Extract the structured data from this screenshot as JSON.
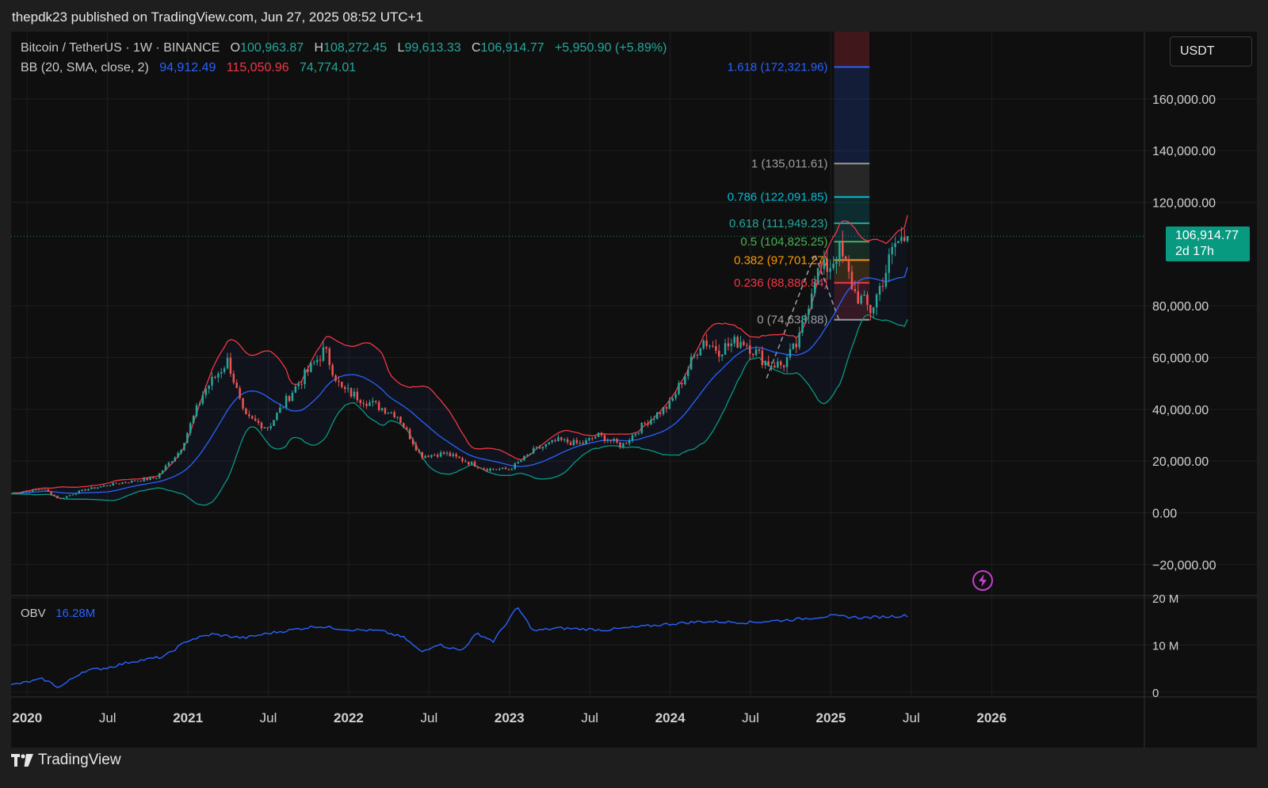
{
  "header": {
    "attribution": "thepdk23 published on TradingView.com, Jun 27, 2025 08:52 UTC+1"
  },
  "legend": {
    "symbol": "Bitcoin / TetherUS · 1W · BINANCE",
    "o_label": "O",
    "o_value": "100,963.87",
    "h_label": "H",
    "h_value": "108,272.45",
    "l_label": "L",
    "l_value": "99,613.33",
    "c_label": "C",
    "c_value": "106,914.77",
    "change": "+5,950.90 (+5.89%)",
    "bb_label": "BB (20, SMA, close, 2)",
    "bb_basis": "94,912.49",
    "bb_upper": "115,050.96",
    "bb_lower": "74,774.01"
  },
  "currency": "USDT",
  "price_tag": {
    "price": "106,914.77",
    "countdown": "2d 17h"
  },
  "obv": {
    "label": "OBV",
    "value": "16.28M"
  },
  "footer": {
    "brand": "TradingView"
  },
  "colors": {
    "up": "#26a69a",
    "down": "#ef5350",
    "basis": "#2962ff",
    "upper": "#f23645",
    "lower": "#089981",
    "obv": "#2962ff",
    "accent": "#089981"
  },
  "icons": [
    "tradingview-logo-icon",
    "lightning-icon"
  ],
  "chart_data": {
    "type": "line",
    "symbol": "Bitcoin / TetherUS",
    "interval": "1W",
    "price_axis": {
      "ticks": [
        {
          "value": 160000,
          "label": "160,000.00"
        },
        {
          "value": 140000,
          "label": "140,000.00"
        },
        {
          "value": 120000,
          "label": "120,000.00"
        },
        {
          "value": 80000,
          "label": "80,000.00"
        },
        {
          "value": 60000,
          "label": "60,000.00"
        },
        {
          "value": 40000,
          "label": "40,000.00"
        },
        {
          "value": 20000,
          "label": "20,000.00"
        },
        {
          "value": 0,
          "label": "0.00"
        },
        {
          "value": -20000,
          "label": "−20,000.00"
        }
      ],
      "ylim": [
        -32000,
        186000
      ]
    },
    "obv_axis": {
      "ticks": [
        {
          "value": 20,
          "label": "20 M"
        },
        {
          "value": 10,
          "label": "10 M"
        },
        {
          "value": 0,
          "label": "0"
        }
      ],
      "ylim": [
        -1,
        20.5
      ]
    },
    "time_axis": {
      "ticks": [
        {
          "t": 2020.0,
          "label": "2020",
          "bold": true
        },
        {
          "t": 2020.5,
          "label": "Jul",
          "bold": false
        },
        {
          "t": 2021.0,
          "label": "2021",
          "bold": true
        },
        {
          "t": 2021.5,
          "label": "Jul",
          "bold": false
        },
        {
          "t": 2022.0,
          "label": "2022",
          "bold": true
        },
        {
          "t": 2022.5,
          "label": "Jul",
          "bold": false
        },
        {
          "t": 2023.0,
          "label": "2023",
          "bold": true
        },
        {
          "t": 2023.5,
          "label": "Jul",
          "bold": false
        },
        {
          "t": 2024.0,
          "label": "2024",
          "bold": true
        },
        {
          "t": 2024.5,
          "label": "Jul",
          "bold": false
        },
        {
          "t": 2025.0,
          "label": "2025",
          "bold": true
        },
        {
          "t": 2025.5,
          "label": "Jul",
          "bold": false
        },
        {
          "t": 2026.0,
          "label": "2026",
          "bold": true
        }
      ],
      "xlim": [
        2019.9,
        2026.95
      ]
    },
    "close_keypoints": [
      [
        2019.9,
        7400
      ],
      [
        2020.1,
        9300
      ],
      [
        2020.2,
        5300
      ],
      [
        2020.35,
        8800
      ],
      [
        2020.55,
        11300
      ],
      [
        2020.8,
        13500
      ],
      [
        2020.95,
        24000
      ],
      [
        2021.1,
        47000
      ],
      [
        2021.25,
        59000
      ],
      [
        2021.35,
        37000
      ],
      [
        2021.5,
        33000
      ],
      [
        2021.65,
        47000
      ],
      [
        2021.85,
        63000
      ],
      [
        2021.95,
        48000
      ],
      [
        2022.15,
        42000
      ],
      [
        2022.3,
        38000
      ],
      [
        2022.45,
        22000
      ],
      [
        2022.6,
        23000
      ],
      [
        2022.85,
        17000
      ],
      [
        2023.0,
        16800
      ],
      [
        2023.15,
        24000
      ],
      [
        2023.3,
        28000
      ],
      [
        2023.45,
        26500
      ],
      [
        2023.55,
        30000
      ],
      [
        2023.7,
        26000
      ],
      [
        2023.85,
        35000
      ],
      [
        2024.0,
        42000
      ],
      [
        2024.2,
        67000
      ],
      [
        2024.3,
        63000
      ],
      [
        2024.45,
        67000
      ],
      [
        2024.6,
        58000
      ],
      [
        2024.7,
        57000
      ],
      [
        2024.8,
        66000
      ],
      [
        2024.9,
        92000
      ],
      [
        2025.0,
        96000
      ],
      [
        2025.05,
        102000
      ],
      [
        2025.15,
        85000
      ],
      [
        2025.25,
        78000
      ],
      [
        2025.35,
        95000
      ],
      [
        2025.4,
        104000
      ],
      [
        2025.45,
        106000
      ],
      [
        2025.49,
        106914.77
      ]
    ],
    "bollinger": {
      "length": 20,
      "type": "SMA",
      "source": "close",
      "mult": 2,
      "basis": 94912.49,
      "upper": 115050.96,
      "lower": 74774.01
    },
    "fibonacci": [
      {
        "ratio": "1.618",
        "value": 172321.96,
        "label": "1.618 (172,321.96)",
        "color": "#2962ff"
      },
      {
        "ratio": "1",
        "value": 135011.61,
        "label": "1 (135,011.61)",
        "color": "#9e9e9e"
      },
      {
        "ratio": "0.786",
        "value": 122091.85,
        "label": "0.786 (122,091.85)",
        "color": "#00bcd4"
      },
      {
        "ratio": "0.618",
        "value": 111949.23,
        "label": "0.618 (111,949.23)",
        "color": "#26a69a"
      },
      {
        "ratio": "0.5",
        "value": 104825.25,
        "label": "0.5 (104,825.25)",
        "color": "#4caf50"
      },
      {
        "ratio": "0.382",
        "value": 97701.27,
        "label": "0.382 (97,701.27)",
        "color": "#ff9800"
      },
      {
        "ratio": "0.236",
        "value": 88886.84,
        "label": "0.236 (88,886.84)",
        "color": "#f23645"
      },
      {
        "ratio": "0",
        "value": 74638.88,
        "label": "0 (74,638.88)",
        "color": "#9e9e9e"
      }
    ],
    "last_price": 106914.77,
    "obv_keypoints": [
      [
        2019.9,
        1.5
      ],
      [
        2020.1,
        2.8
      ],
      [
        2020.2,
        1.0
      ],
      [
        2020.35,
        4.5
      ],
      [
        2020.5,
        5.2
      ],
      [
        2020.65,
        6.5
      ],
      [
        2020.85,
        7.5
      ],
      [
        2021.0,
        11.0
      ],
      [
        2021.15,
        12.3
      ],
      [
        2021.35,
        11.5
      ],
      [
        2021.5,
        12.5
      ],
      [
        2021.8,
        14.0
      ],
      [
        2022.0,
        13.3
      ],
      [
        2022.2,
        13.0
      ],
      [
        2022.35,
        11.5
      ],
      [
        2022.45,
        8.5
      ],
      [
        2022.55,
        10.2
      ],
      [
        2022.7,
        8.8
      ],
      [
        2022.8,
        12.5
      ],
      [
        2022.9,
        10.8
      ],
      [
        2023.05,
        18.0
      ],
      [
        2023.15,
        13.0
      ],
      [
        2023.3,
        13.6
      ],
      [
        2023.6,
        13.2
      ],
      [
        2023.85,
        14.0
      ],
      [
        2024.0,
        14.5
      ],
      [
        2024.2,
        15.0
      ],
      [
        2024.5,
        14.8
      ],
      [
        2024.8,
        15.5
      ],
      [
        2025.0,
        16.2
      ],
      [
        2025.2,
        15.8
      ],
      [
        2025.49,
        16.28
      ]
    ]
  }
}
